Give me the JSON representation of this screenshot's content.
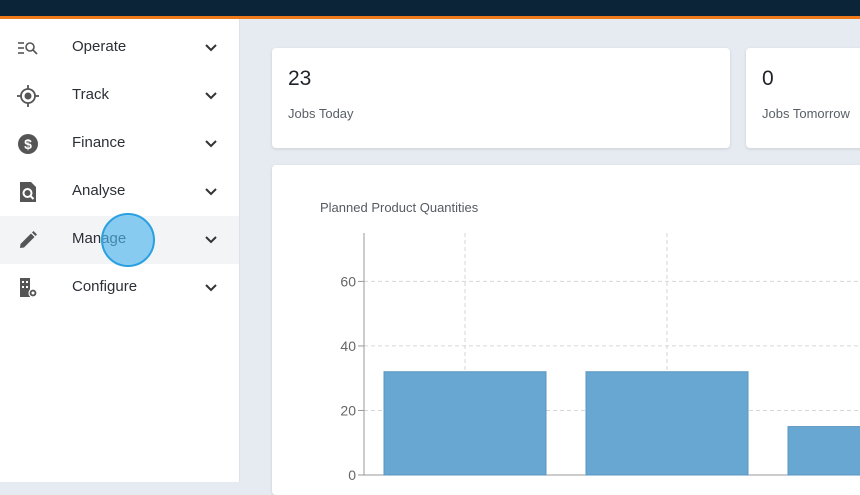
{
  "sidebar": {
    "items": [
      {
        "label": "Operate",
        "icon": "operate-search-list-icon"
      },
      {
        "label": "Track",
        "icon": "target-icon"
      },
      {
        "label": "Finance",
        "icon": "dollar-icon"
      },
      {
        "label": "Analyse",
        "icon": "document-search-icon"
      },
      {
        "label": "Manage",
        "icon": "pencil-icon"
      },
      {
        "label": "Configure",
        "icon": "building-gear-icon"
      }
    ],
    "active_index": 4
  },
  "stats": [
    {
      "value": "23",
      "label": "Jobs Today"
    },
    {
      "value": "0",
      "label": "Jobs Tomorrow"
    }
  ],
  "colors": {
    "topbar": "#0c2438",
    "accent": "#f07a1a",
    "bar": "#68a7d2",
    "cursor": "#4fb6ec"
  },
  "chart_data": {
    "type": "bar",
    "title": "Planned Product Quantities",
    "categories": [
      "",
      "",
      ""
    ],
    "values": [
      32,
      32,
      15
    ],
    "yticks": [
      "0",
      "20",
      "40",
      "60"
    ],
    "ylim": [
      0,
      75
    ],
    "grid": true
  }
}
